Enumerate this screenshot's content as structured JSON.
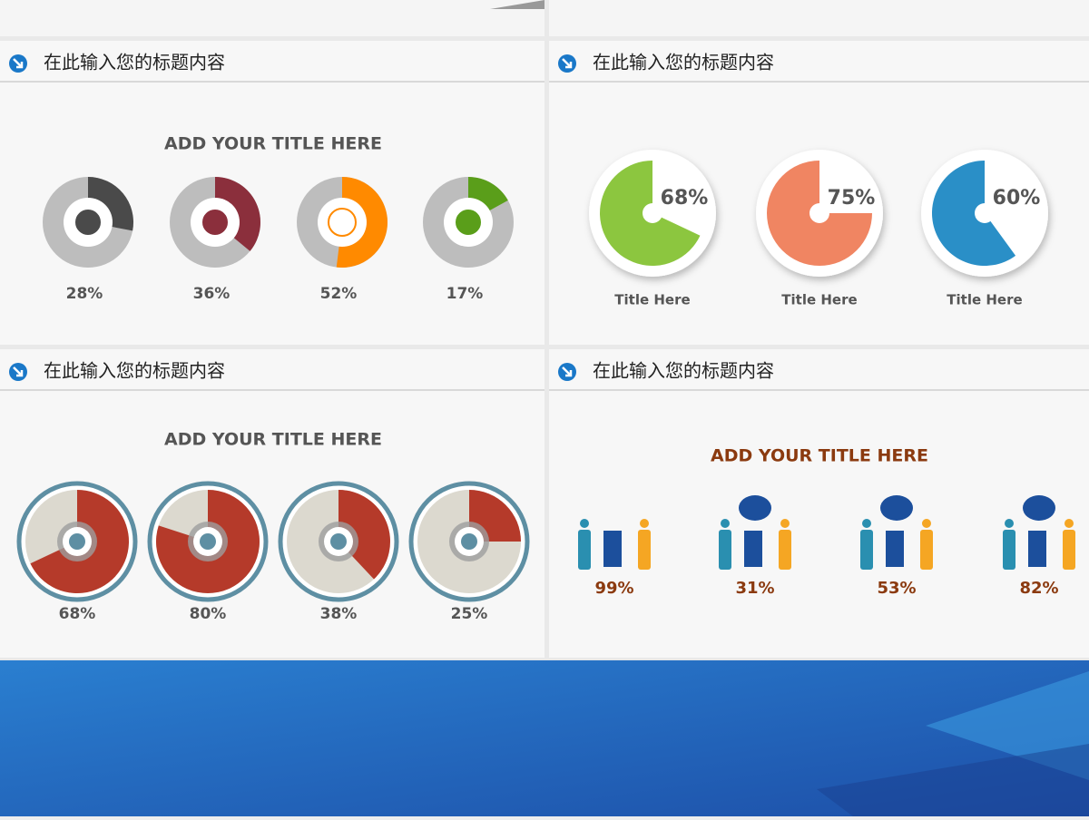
{
  "panels": [
    {
      "header": "在此输入您的标题内容",
      "title": "ADD YOUR TITLE HERE",
      "items": [
        {
          "value": 28,
          "label": "28%",
          "color": "#4a4a4a"
        },
        {
          "value": 36,
          "label": "36%",
          "color": "#8b2f3c"
        },
        {
          "value": 52,
          "label": "52%",
          "color": "#ff8a00"
        },
        {
          "value": 17,
          "label": "17%",
          "color": "#5a9e1a"
        }
      ]
    },
    {
      "header": "在此输入您的标题内容",
      "items": [
        {
          "value": 68,
          "label": "68%",
          "title": "Title Here",
          "color": "#8cc63f"
        },
        {
          "value": 75,
          "label": "75%",
          "title": "Title Here",
          "color": "#f08562"
        },
        {
          "value": 60,
          "label": "60%",
          "title": "Title Here",
          "color": "#2a8fc7"
        }
      ]
    },
    {
      "header": "在此输入您的标题内容",
      "title": "ADD YOUR TITLE HERE",
      "items": [
        {
          "value": 68,
          "label": "68%"
        },
        {
          "value": 80,
          "label": "80%"
        },
        {
          "value": 38,
          "label": "38%"
        },
        {
          "value": 25,
          "label": "25%"
        }
      ]
    },
    {
      "header": "在此输入您的标题内容",
      "title": "ADD YOUR TITLE HERE",
      "items": [
        {
          "label": "99%"
        },
        {
          "label": "31%"
        },
        {
          "label": "53%"
        },
        {
          "label": "82%"
        }
      ]
    }
  ]
}
